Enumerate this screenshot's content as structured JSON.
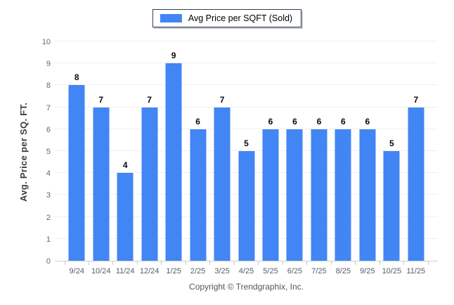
{
  "legend": {
    "label": "Avg Price per SQFT (Sold)",
    "swatch_color": "#4285f4"
  },
  "footer": {
    "copyright": "Copyright © Trendgraphix, Inc."
  },
  "colors": {
    "bar": "#4285f4",
    "gridline": "#efefef",
    "axis_baseline": "#cfcfcf",
    "tick_label": "#666666",
    "value_label": "#0a0a0a",
    "background": "#ffffff"
  },
  "chart_data": {
    "type": "bar",
    "title": "",
    "series_name": "Avg Price per SQFT (Sold)",
    "categories": [
      "9/24",
      "10/24",
      "11/24",
      "12/24",
      "1/25",
      "2/25",
      "3/25",
      "4/25",
      "5/25",
      "6/25",
      "7/25",
      "8/25",
      "9/25",
      "10/25",
      "11/25"
    ],
    "values": [
      8,
      7,
      4,
      7,
      9,
      6,
      7,
      5,
      6,
      6,
      6,
      6,
      6,
      5,
      7
    ],
    "xlabel": "",
    "ylabel": "Avg. Price per SQ. FT.",
    "ylim": [
      0,
      10
    ],
    "ytick_step": 1,
    "grid": true,
    "value_labels": true,
    "legend_position": "top-center",
    "bar_color": "#4285f4"
  }
}
